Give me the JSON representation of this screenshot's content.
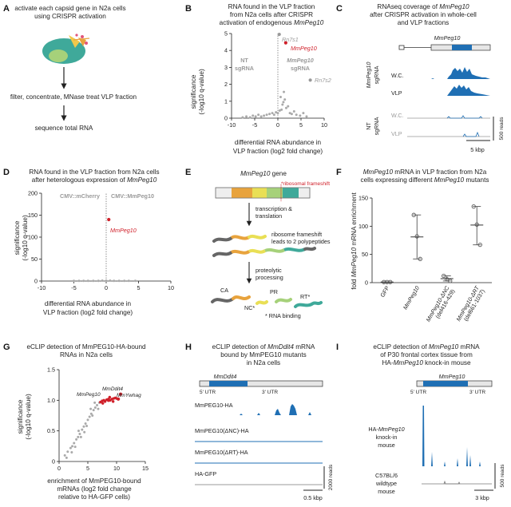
{
  "colors": {
    "red": "#d0202a",
    "blue": "#1f6fb4",
    "gray": "#9a9a9a",
    "orange": "#e8a33d",
    "yellow": "#e9df55",
    "green": "#a6d17a",
    "teal": "#3fa99a",
    "lightgray": "#eeeeee"
  },
  "panelA": {
    "letter": "A",
    "title_l1": "activate each capsid gene in N2a cells",
    "title_l2": "using CRISPR activation",
    "step1": "filter, concentrate, MNase treat VLP fraction",
    "step2": "sequence total RNA"
  },
  "panelB": {
    "letter": "B",
    "title_l1": "RNA found in the VLP fraction",
    "title_l2": "from N2a cells after CRISPR",
    "title_l3a": "activation of endogenous ",
    "title_l3b": "MmPeg10",
    "ylabel_l1": "significance",
    "ylabel_l2": "(-log10 q-value)",
    "xlabel_l1": "differential RNA abundance in",
    "xlabel_l2": "VLP fraction (log2 fold change)",
    "label_left_l1": "NT",
    "label_left_l2": "sgRNA",
    "label_right_l1": "MmPeg10",
    "label_right_l2": "sgRNA",
    "point_labels": [
      {
        "text": "Rn7s1"
      },
      {
        "text": "MmPeg10"
      },
      {
        "text": "Rn7s2"
      }
    ],
    "chart_data": {
      "type": "scatter",
      "title": "RNA found in the VLP fraction from N2a cells after CRISPR activation of endogenous MmPeg10",
      "xlabel": "differential RNA abundance in VLP fraction (log2 fold change)",
      "ylabel": "significance (-log10 q-value)",
      "xlim": [
        -10,
        10
      ],
      "ylim": [
        0,
        5
      ],
      "xticks": [
        "-10",
        "-5",
        "0",
        "5",
        "10"
      ],
      "yticks": [
        "0",
        "1",
        "2",
        "3",
        "4",
        "5"
      ],
      "highlights": [
        {
          "name": "Rn7s1",
          "x": 0.3,
          "y": 4.95
        },
        {
          "name": "MmPeg10",
          "x": 1.7,
          "y": 4.45
        },
        {
          "name": "Rn7s2",
          "x": 7.0,
          "y": 2.25
        }
      ],
      "points": [
        [
          -7.6,
          0.05
        ],
        [
          -6.8,
          0.1
        ],
        [
          -6.0,
          0.05
        ],
        [
          -5.4,
          0.15
        ],
        [
          -4.8,
          0.1
        ],
        [
          -4.2,
          0.2
        ],
        [
          -3.6,
          0.1
        ],
        [
          -3.0,
          0.15
        ],
        [
          -2.4,
          0.2
        ],
        [
          -1.8,
          0.25
        ],
        [
          -1.2,
          0.3
        ],
        [
          -0.8,
          0.2
        ],
        [
          -0.4,
          0.35
        ],
        [
          0.0,
          0.3
        ],
        [
          0.4,
          0.45
        ],
        [
          0.8,
          0.5
        ],
        [
          1.0,
          0.8
        ],
        [
          1.2,
          0.95
        ],
        [
          1.5,
          1.1
        ],
        [
          1.8,
          0.6
        ],
        [
          2.2,
          0.7
        ],
        [
          2.6,
          0.3
        ],
        [
          3.0,
          0.25
        ],
        [
          3.5,
          0.4
        ],
        [
          4.0,
          0.2
        ],
        [
          4.8,
          0.15
        ],
        [
          5.5,
          0.3
        ],
        [
          6.2,
          0.1
        ],
        [
          0.6,
          1.25
        ],
        [
          1.3,
          1.55
        ]
      ]
    }
  },
  "panelC": {
    "letter": "C",
    "title_l1a": "RNAseq coverage of ",
    "title_l1b": "MmPeg10",
    "title_l2": "after CRISPR activation in whole-cell",
    "title_l3": "and VLP fractions",
    "gene": "MmPeg10",
    "group1_a": "MmPeg10",
    "group1_b": "sgRNA",
    "group2_a": "NT",
    "group2_b": "sgRNA",
    "track_wc": "W.C.",
    "track_vlp": "VLP",
    "scale_x": "5 kbp",
    "scale_y": "500 reads"
  },
  "panelD": {
    "letter": "D",
    "title_l1": "RNA found in the VLP fraction from N2a cells",
    "title_l2a": "after heterologous expression of ",
    "title_l2b": "MmPeg10",
    "ylabel_l1": "significance",
    "ylabel_l2": "(-log10 q-value)",
    "xlabel_l1": "differential RNA abundance in",
    "xlabel_l2": "VLP fraction (log2 fold change)",
    "label_left": "CMV::mCherry",
    "label_right": "CMV::MmPeg10",
    "point_label": "MmPeg10",
    "chart_data": {
      "type": "scatter",
      "title": "RNA found in the VLP fraction from N2a cells after heterologous expression of MmPeg10",
      "xlabel": "differential RNA abundance in VLP fraction (log2 fold change)",
      "ylabel": "significance (-log10 q-value)",
      "xlim": [
        -10,
        10
      ],
      "ylim": [
        0,
        200
      ],
      "xticks": [
        "-10",
        "-5",
        "0",
        "5",
        "10"
      ],
      "yticks": [
        "0",
        "50",
        "100",
        "150",
        "200"
      ],
      "highlights": [
        {
          "name": "MmPeg10",
          "x": 0.4,
          "y": 140
        }
      ],
      "points": [
        [
          -5.0,
          0.5
        ],
        [
          -4.2,
          0.5
        ],
        [
          -3.5,
          0.5
        ],
        [
          -2.8,
          0.5
        ],
        [
          -2.0,
          0.5
        ],
        [
          -1.2,
          0.5
        ],
        [
          -0.6,
          1
        ],
        [
          0.0,
          1
        ],
        [
          0.6,
          1
        ],
        [
          1.2,
          0.5
        ],
        [
          2.0,
          0.5
        ],
        [
          2.8,
          0.5
        ],
        [
          3.5,
          0.5
        ],
        [
          4.5,
          0.5
        ]
      ]
    }
  },
  "panelE": {
    "letter": "E",
    "gene_a": "MmPeg10",
    "gene_b": " gene",
    "frameshift": "*ribosomal frameshift",
    "step1_l1": "transcription &",
    "step1_l2": "translation",
    "ribo_l1": "ribosome frameshift",
    "ribo_l2": "leads to 2 polypeptides",
    "step2_l1": "proteolytic",
    "step2_l2": "processing",
    "frag_ca": "CA",
    "frag_nc": "NC*",
    "frag_pr": "PR",
    "frag_rt": "RT*",
    "footnote": "* RNA binding"
  },
  "panelF": {
    "letter": "F",
    "title_l1a": "MmPeg10",
    "title_l1b": " mRNA in VLP fraction from N2a",
    "title_l2a": "cells expressing different ",
    "title_l2b": "MmPeg10",
    "title_l2c": " mutants",
    "ylabel_a": "fold ",
    "ylabel_b": "MmPeg10",
    "ylabel_c": " mRNA enrichment",
    "chart_data": {
      "type": "scatter",
      "title": "MmPeg10 mRNA in VLP fraction from N2a cells expressing different MmPeg10 mutants",
      "ylabel": "fold MmPeg10 mRNA enrichment",
      "ylim": [
        0,
        150
      ],
      "yticks": [
        "0",
        "50",
        "100",
        "150"
      ],
      "categories": [
        "GFP",
        "MmPeg10",
        "MmPeg10-ΔNC (del416-429)",
        "MmPeg10-ΔRT (del661-1037)"
      ],
      "category_lines": [
        [
          "GFP"
        ],
        [
          "MmPeg10"
        ],
        [
          "MmPeg10-ΔNC",
          "(del416-429)"
        ],
        [
          "MmPeg10-ΔRT",
          "(del661-1037)"
        ]
      ],
      "replicates": [
        [
          1,
          1,
          1
        ],
        [
          120,
          82,
          42
        ],
        [
          12,
          6,
          3
        ],
        [
          135,
          103,
          67
        ]
      ],
      "mean": [
        1,
        81,
        7,
        102
      ]
    }
  },
  "panelG": {
    "letter": "G",
    "title_l1": "eCLIP detection of MmPEG10-HA-bound",
    "title_l2": "RNAs in N2a cells",
    "ylabel_l1": "significance",
    "ylabel_l2": "(-log10 q-value)",
    "xlabel_l1": "enrichment of MmPEG10-bound",
    "xlabel_l2": "mRNAs (log2 fold change",
    "xlabel_l3": "relative to HA-GFP cells)",
    "labels": [
      "MmDdit4",
      "MmPeg10",
      "MmYwhag"
    ],
    "chart_data": {
      "type": "scatter",
      "title": "eCLIP detection of MmPEG10-HA-bound RNAs in N2a cells",
      "xlabel": "enrichment of MmPEG10-bound mRNAs (log2 fold change relative to HA-GFP cells)",
      "ylabel": "significance (-log10 q-value)",
      "xlim": [
        0,
        15
      ],
      "ylim": [
        0,
        1.5
      ],
      "xticks": [
        "0",
        "5",
        "10",
        "15"
      ],
      "yticks": [
        "0",
        "0.5",
        "1.0",
        "1.5"
      ],
      "highlights": [
        {
          "name": "MmDdit4",
          "x": 10.7,
          "y": 1.1
        },
        {
          "name": "MmPeg10",
          "x": 8.6,
          "y": 1.0
        },
        {
          "name": "MmYwhag",
          "x": 10.3,
          "y": 1.02
        }
      ],
      "gray_points": [
        [
          1.0,
          0.1
        ],
        [
          1.5,
          0.16
        ],
        [
          2.0,
          0.22
        ],
        [
          2.3,
          0.25
        ],
        [
          2.6,
          0.3
        ],
        [
          3.0,
          0.36
        ],
        [
          3.3,
          0.4
        ],
        [
          3.6,
          0.45
        ],
        [
          4.0,
          0.52
        ],
        [
          4.3,
          0.57
        ],
        [
          4.6,
          0.62
        ],
        [
          5.0,
          0.68
        ],
        [
          5.3,
          0.73
        ],
        [
          5.6,
          0.78
        ],
        [
          6.0,
          0.84
        ],
        [
          6.3,
          0.88
        ],
        [
          6.6,
          0.92
        ],
        [
          7.0,
          0.96
        ],
        [
          2.8,
          0.24
        ],
        [
          3.8,
          0.4
        ],
        [
          4.8,
          0.58
        ],
        [
          5.8,
          0.75
        ],
        [
          6.8,
          0.86
        ],
        [
          3.4,
          0.5
        ],
        [
          5.5,
          0.86
        ],
        [
          6.2,
          0.96
        ],
        [
          1.3,
          0.06
        ],
        [
          2.2,
          0.15
        ],
        [
          4.4,
          0.48
        ]
      ],
      "red_points": [
        [
          7.2,
          0.97
        ],
        [
          7.5,
          0.99
        ],
        [
          7.8,
          1.0
        ],
        [
          8.0,
          0.98
        ],
        [
          8.3,
          1.01
        ],
        [
          8.6,
          1.02
        ],
        [
          8.9,
          1.0
        ],
        [
          9.2,
          1.02
        ],
        [
          9.5,
          1.03
        ],
        [
          9.8,
          1.04
        ],
        [
          10.0,
          1.03
        ],
        [
          7.6,
          0.95
        ],
        [
          8.8,
          1.05
        ],
        [
          9.4,
          0.98
        ]
      ]
    }
  },
  "panelH": {
    "letter": "H",
    "title_l1a": "eCLIP detection of ",
    "title_l1b": "MmDdit4",
    "title_l1c": " mRNA",
    "title_l2": "bound by MmPEG10 mutants",
    "title_l3": "in N2a cells",
    "gene": "MmDdit4",
    "utr5": "5' UTR",
    "utr3": "3' UTR",
    "tracks": [
      "MmPEG10-HA",
      "MmPEG10(ΔNC)-HA",
      "MmPEG10(ΔRT)-HA",
      "HA-GFP"
    ],
    "scale_y": "2000 reads",
    "scale_x": "0.5 kbp"
  },
  "panelI": {
    "letter": "I",
    "title_l1a": "eCLIP detection of ",
    "title_l1b": "MmPeg10",
    "title_l1c": " mRNA",
    "title_l2": "of P30 frontal cortex tissue from",
    "title_l3a": "HA-",
    "title_l3b": "MmPeg10",
    "title_l3c": " knock-in mouse",
    "gene": "MmPeg10",
    "utr5": "5' UTR",
    "utr3": "3' UTR",
    "track1_a": "HA-",
    "track1_b": "MmPeg10",
    "track1_l2": "knock-in",
    "track1_l3": "mouse",
    "track2_l1": "C57BL/6",
    "track2_l2": "wildtype",
    "track2_l3": "mouse",
    "scale_y": "500 reads",
    "scale_x": "3 kbp"
  }
}
